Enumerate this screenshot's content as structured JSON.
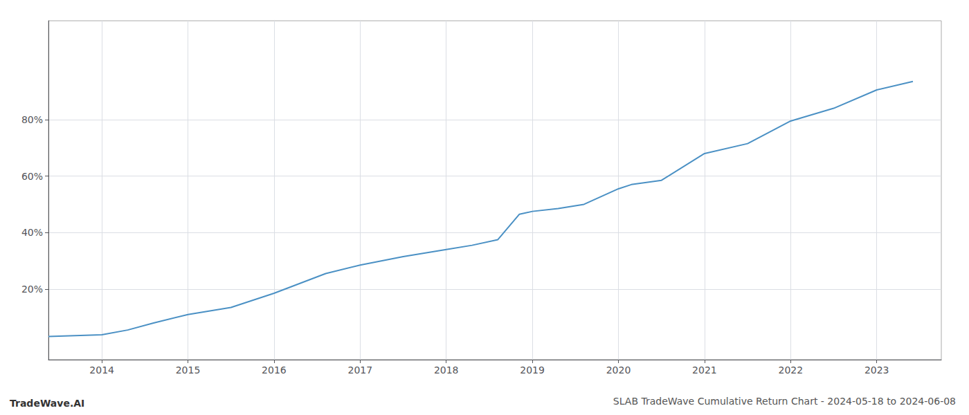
{
  "chart_data": {
    "type": "line",
    "title": "SLAB TradeWave Cumulative Return Chart - 2024-05-18 to 2024-06-08",
    "annotations": [
      "TradeWave.AI"
    ],
    "x": [
      2013.38,
      2014.0,
      2014.3,
      2014.6,
      2015.0,
      2015.5,
      2016.0,
      2016.3,
      2016.6,
      2017.0,
      2017.5,
      2018.0,
      2018.3,
      2018.6,
      2018.85,
      2019.0,
      2019.3,
      2019.6,
      2020.0,
      2020.15,
      2020.5,
      2021.0,
      2021.5,
      2022.0,
      2022.5,
      2023.0,
      2023.42
    ],
    "values": [
      3.2,
      3.8,
      5.5,
      8.0,
      11.0,
      13.5,
      18.5,
      22.0,
      25.5,
      28.5,
      31.5,
      34.0,
      35.5,
      37.5,
      46.5,
      47.5,
      48.5,
      50.0,
      55.5,
      57.0,
      58.5,
      68.0,
      71.5,
      79.5,
      84.0,
      90.5,
      93.5
    ],
    "color": "#4a90c4",
    "xlim": [
      2013.38,
      2023.75
    ],
    "xticks": [
      2014,
      2015,
      2016,
      2017,
      2018,
      2019,
      2020,
      2021,
      2022,
      2023
    ],
    "ylim": [
      -5,
      115
    ],
    "yticks": [
      {
        "value": 20,
        "label": "20%"
      },
      {
        "value": 40,
        "label": "40%"
      },
      {
        "value": 60,
        "label": "60%"
      },
      {
        "value": 80,
        "label": "80%"
      }
    ],
    "grid": true
  }
}
